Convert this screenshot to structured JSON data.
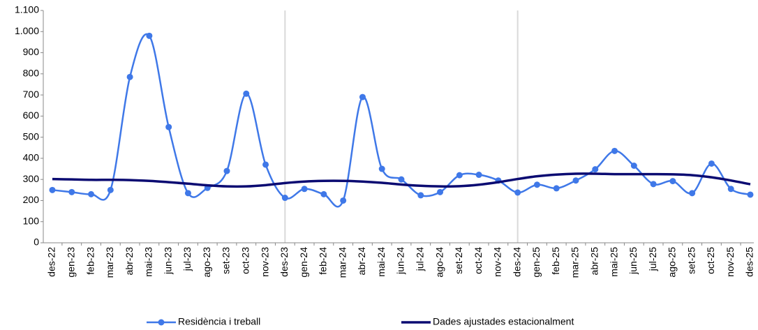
{
  "chart_data": {
    "type": "line",
    "categories": [
      "des-22",
      "gen-23",
      "feb-23",
      "mar-23",
      "abr-23",
      "mai-23",
      "jun-23",
      "jul-23",
      "ago-23",
      "set-23",
      "oct-23",
      "nov-23",
      "des-23",
      "gen-24",
      "feb-24",
      "mar-24",
      "abr-24",
      "mai-24",
      "jun-24",
      "jul-24",
      "ago-24",
      "set-24",
      "oct-24",
      "nov-24",
      "des-24",
      "gen-25",
      "feb-25",
      "mar-25",
      "abr-25",
      "mai-25",
      "jun-25",
      "jul-25",
      "ago-25",
      "set-25",
      "oct-25",
      "nov-25",
      "des-25"
    ],
    "series": [
      {
        "name": "Residència i treball",
        "color": "#3f78e8",
        "marker": true,
        "values": [
          250,
          240,
          230,
          250,
          785,
          980,
          548,
          235,
          260,
          340,
          706,
          370,
          213,
          255,
          230,
          200,
          690,
          350,
          300,
          225,
          240,
          320,
          322,
          295,
          238,
          275,
          258,
          295,
          348,
          435,
          365,
          278,
          292,
          235,
          375,
          255,
          228
        ]
      },
      {
        "name": "Dades ajustades estacionalment",
        "color": "#0b0b72",
        "marker": false,
        "values": [
          302,
          300,
          298,
          298,
          297,
          293,
          287,
          280,
          272,
          267,
          267,
          273,
          283,
          290,
          293,
          293,
          290,
          284,
          276,
          270,
          267,
          268,
          275,
          287,
          302,
          315,
          323,
          327,
          327,
          325,
          325,
          325,
          324,
          320,
          310,
          295,
          277
        ]
      }
    ],
    "ylim": [
      0,
      1100
    ],
    "yticks": [
      0,
      100,
      200,
      300,
      400,
      500,
      600,
      700,
      800,
      900,
      {
        "value": 1000,
        "label": "1.000"
      },
      {
        "value": 1100,
        "label": "1.100"
      }
    ],
    "legend": "bottom"
  }
}
